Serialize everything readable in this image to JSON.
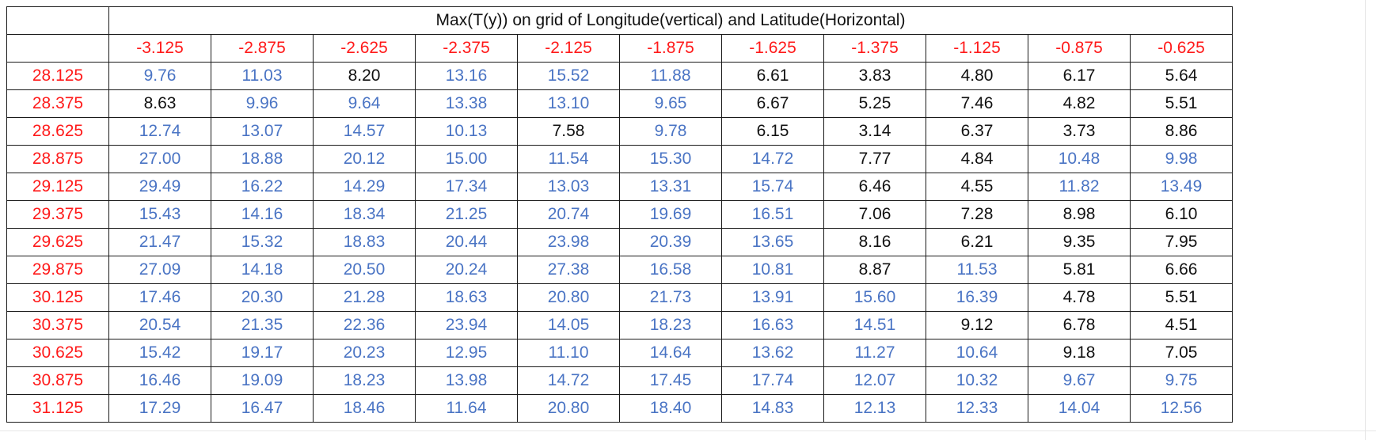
{
  "sheet": {
    "title": "Max(T(y)) on grid of Longitude(vertical) and Latitude(Horizontal)",
    "columns": [
      "-3.125",
      "-2.875",
      "-2.625",
      "-2.375",
      "-2.125",
      "-1.875",
      "-1.625",
      "-1.375",
      "-1.125",
      "-0.875",
      "-0.625"
    ],
    "rows": [
      {
        "label": "28.125",
        "values": [
          "9.76",
          "11.03",
          "8.20",
          "13.16",
          "15.52",
          "11.88",
          "6.61",
          "3.83",
          "4.80",
          "6.17",
          "5.64"
        ],
        "colors": [
          "blue",
          "blue",
          "black",
          "blue",
          "blue",
          "blue",
          "black",
          "black",
          "black",
          "black",
          "black"
        ]
      },
      {
        "label": "28.375",
        "values": [
          "8.63",
          "9.96",
          "9.64",
          "13.38",
          "13.10",
          "9.65",
          "6.67",
          "5.25",
          "7.46",
          "4.82",
          "5.51"
        ],
        "colors": [
          "black",
          "blue",
          "blue",
          "blue",
          "blue",
          "blue",
          "black",
          "black",
          "black",
          "black",
          "black"
        ]
      },
      {
        "label": "28.625",
        "values": [
          "12.74",
          "13.07",
          "14.57",
          "10.13",
          "7.58",
          "9.78",
          "6.15",
          "3.14",
          "6.37",
          "3.73",
          "8.86"
        ],
        "colors": [
          "blue",
          "blue",
          "blue",
          "blue",
          "black",
          "blue",
          "black",
          "black",
          "black",
          "black",
          "black"
        ]
      },
      {
        "label": "28.875",
        "values": [
          "27.00",
          "18.88",
          "20.12",
          "15.00",
          "11.54",
          "15.30",
          "14.72",
          "7.77",
          "4.84",
          "10.48",
          "9.98"
        ],
        "colors": [
          "blue",
          "blue",
          "blue",
          "blue",
          "blue",
          "blue",
          "blue",
          "black",
          "black",
          "blue",
          "blue"
        ]
      },
      {
        "label": "29.125",
        "values": [
          "29.49",
          "16.22",
          "14.29",
          "17.34",
          "13.03",
          "13.31",
          "15.74",
          "6.46",
          "4.55",
          "11.82",
          "13.49"
        ],
        "colors": [
          "blue",
          "blue",
          "blue",
          "blue",
          "blue",
          "blue",
          "blue",
          "black",
          "black",
          "blue",
          "blue"
        ]
      },
      {
        "label": "29.375",
        "values": [
          "15.43",
          "14.16",
          "18.34",
          "21.25",
          "20.74",
          "19.69",
          "16.51",
          "7.06",
          "7.28",
          "8.98",
          "6.10"
        ],
        "colors": [
          "blue",
          "blue",
          "blue",
          "blue",
          "blue",
          "blue",
          "blue",
          "black",
          "black",
          "black",
          "black"
        ]
      },
      {
        "label": "29.625",
        "values": [
          "21.47",
          "15.32",
          "18.83",
          "20.44",
          "23.98",
          "20.39",
          "13.65",
          "8.16",
          "6.21",
          "9.35",
          "7.95"
        ],
        "colors": [
          "blue",
          "blue",
          "blue",
          "blue",
          "blue",
          "blue",
          "blue",
          "black",
          "black",
          "black",
          "black"
        ]
      },
      {
        "label": "29.875",
        "values": [
          "27.09",
          "14.18",
          "20.50",
          "20.24",
          "27.38",
          "16.58",
          "10.81",
          "8.87",
          "11.53",
          "5.81",
          "6.66"
        ],
        "colors": [
          "blue",
          "blue",
          "blue",
          "blue",
          "blue",
          "blue",
          "blue",
          "black",
          "blue",
          "black",
          "black"
        ]
      },
      {
        "label": "30.125",
        "values": [
          "17.46",
          "20.30",
          "21.28",
          "18.63",
          "20.80",
          "21.73",
          "13.91",
          "15.60",
          "16.39",
          "4.78",
          "5.51"
        ],
        "colors": [
          "blue",
          "blue",
          "blue",
          "blue",
          "blue",
          "blue",
          "blue",
          "blue",
          "blue",
          "black",
          "black"
        ]
      },
      {
        "label": "30.375",
        "values": [
          "20.54",
          "21.35",
          "22.36",
          "23.94",
          "14.05",
          "18.23",
          "16.63",
          "14.51",
          "9.12",
          "6.78",
          "4.51"
        ],
        "colors": [
          "blue",
          "blue",
          "blue",
          "blue",
          "blue",
          "blue",
          "blue",
          "blue",
          "black",
          "black",
          "black"
        ]
      },
      {
        "label": "30.625",
        "values": [
          "15.42",
          "19.17",
          "20.23",
          "12.95",
          "11.10",
          "14.64",
          "13.62",
          "11.27",
          "10.64",
          "9.18",
          "7.05"
        ],
        "colors": [
          "blue",
          "blue",
          "blue",
          "blue",
          "blue",
          "blue",
          "blue",
          "blue",
          "blue",
          "black",
          "black"
        ]
      },
      {
        "label": "30.875",
        "values": [
          "16.46",
          "19.09",
          "18.23",
          "13.98",
          "14.72",
          "17.45",
          "17.74",
          "12.07",
          "10.32",
          "9.67",
          "9.75"
        ],
        "colors": [
          "blue",
          "blue",
          "blue",
          "blue",
          "blue",
          "blue",
          "blue",
          "blue",
          "blue",
          "blue",
          "blue"
        ]
      },
      {
        "label": "31.125",
        "values": [
          "17.29",
          "16.47",
          "18.46",
          "11.64",
          "20.80",
          "18.40",
          "14.83",
          "12.13",
          "12.33",
          "14.04",
          "12.56"
        ],
        "colors": [
          "blue",
          "blue",
          "blue",
          "blue",
          "blue",
          "blue",
          "blue",
          "blue",
          "blue",
          "blue",
          "blue"
        ]
      }
    ],
    "palette": {
      "header": "#ff1a1a",
      "blue": "#4a74c4",
      "black": "#111111"
    }
  }
}
